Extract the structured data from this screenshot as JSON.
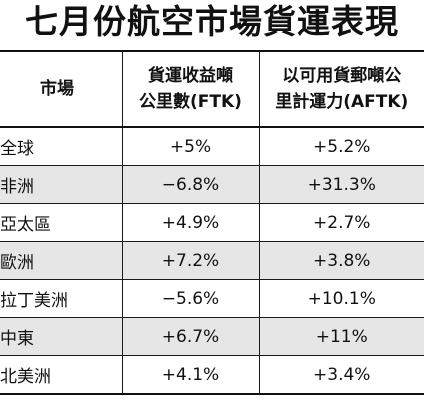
{
  "title": "七月份航空市場貨運表現",
  "headers": {
    "market": "市場",
    "ftk_line1": "貨運收益噸",
    "ftk_line2": "公里數(FTK)",
    "aftk_line1": "以可用貨郵噸公",
    "aftk_line2": "里計運力(AFTK)"
  },
  "rows": [
    {
      "market": "全球",
      "ftk": "+5%",
      "aftk": "+5.2%"
    },
    {
      "market": "非洲",
      "ftk": "−6.8%",
      "aftk": "+31.3%"
    },
    {
      "market": "亞太區",
      "ftk": "+4.9%",
      "aftk": "+2.7%"
    },
    {
      "market": "歐洲",
      "ftk": "+7.2%",
      "aftk": "+3.8%"
    },
    {
      "market": "拉丁美洲",
      "ftk": "−5.6%",
      "aftk": "+10.1%"
    },
    {
      "market": "中東",
      "ftk": "+6.7%",
      "aftk": "+11%"
    },
    {
      "market": "北美洲",
      "ftk": "+4.1%",
      "aftk": "+3.4%"
    }
  ],
  "colors": {
    "text": "#111111",
    "stripe": "#e6e6e6",
    "rule": "#1a1a1a"
  }
}
